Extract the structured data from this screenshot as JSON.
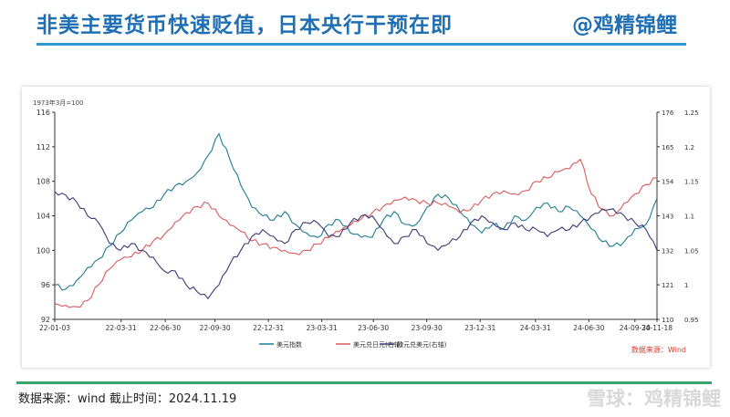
{
  "header": {
    "title": "非美主要货币快速贬值，日本央行干预在即",
    "author": "@鸡精锦鲤"
  },
  "footer": {
    "source_text": "数据来源：wind  截止时间：2024.11.19",
    "watermark": "雪球：鸡精锦鲤"
  },
  "colors": {
    "title": "#1f6fb2",
    "title_rule": "#2d9bd1",
    "footer_rule": "#3aa56b",
    "usd_index": "#1f7a93",
    "usdjpy": "#d95a5a",
    "eurusd": "#3a3a78",
    "source_note": "#d9382f"
  },
  "chart_data": {
    "type": "line",
    "ylabel": "1973年3月=100",
    "source_note": "数据来源：Wind",
    "x_tick_labels": [
      "22-01-03",
      "22-03-31",
      "22-06-30",
      "22-09-30",
      "22-12-31",
      "23-03-31",
      "23-06-30",
      "23-09-30",
      "23-12-31",
      "24-03-31",
      "24-06-30",
      "24-09-30",
      "24-11-18"
    ],
    "left_axis": {
      "ylim": [
        92,
        116
      ],
      "ticks": [
        92,
        96,
        100,
        104,
        108,
        112,
        116
      ]
    },
    "right_axis_outer": {
      "ylim": [
        110,
        176
      ],
      "ticks": [
        110,
        121,
        132,
        143,
        154,
        165,
        176
      ]
    },
    "right_axis_inner": {
      "ylim": [
        0.95,
        1.25
      ],
      "ticks": [
        "0.95",
        "1",
        "1.05",
        "1.1",
        "1.15",
        "1.2",
        "1.25"
      ]
    },
    "legend_position": "bottom",
    "grid": false,
    "series": [
      {
        "name": "美元指数",
        "axis": "left",
        "color": "#1f7a93",
        "points": [
          [
            0,
            96
          ],
          [
            3,
            95.5
          ],
          [
            6,
            96.5
          ],
          [
            9,
            98
          ],
          [
            12,
            99
          ],
          [
            15,
            100.5
          ],
          [
            18,
            102
          ],
          [
            21,
            103.5
          ],
          [
            24,
            104.5
          ],
          [
            27,
            105
          ],
          [
            30,
            106.5
          ],
          [
            33,
            107.5
          ],
          [
            36,
            108
          ],
          [
            39,
            109
          ],
          [
            42,
            111
          ],
          [
            45,
            113.5
          ],
          [
            48,
            110.5
          ],
          [
            51,
            107.5
          ],
          [
            54,
            105
          ],
          [
            57,
            104
          ],
          [
            60,
            103.5
          ],
          [
            63,
            104.5
          ],
          [
            66,
            103
          ],
          [
            69,
            102
          ],
          [
            72,
            101.5
          ],
          [
            75,
            103
          ],
          [
            78,
            103.5
          ],
          [
            81,
            102
          ],
          [
            84,
            101.5
          ],
          [
            87,
            101.5
          ],
          [
            90,
            103.5
          ],
          [
            93,
            104.5
          ],
          [
            96,
            103
          ],
          [
            99,
            103
          ],
          [
            102,
            105
          ],
          [
            105,
            106.5
          ],
          [
            108,
            106
          ],
          [
            111,
            104.5
          ],
          [
            114,
            103
          ],
          [
            117,
            102
          ],
          [
            120,
            103
          ],
          [
            123,
            102.5
          ],
          [
            126,
            104
          ],
          [
            129,
            103.5
          ],
          [
            132,
            105
          ],
          [
            135,
            105.5
          ],
          [
            138,
            104.5
          ],
          [
            141,
            105
          ],
          [
            144,
            104
          ],
          [
            147,
            102.5
          ],
          [
            150,
            101
          ],
          [
            153,
            100.5
          ],
          [
            156,
            101
          ],
          [
            159,
            102.5
          ],
          [
            162,
            103
          ],
          [
            165,
            106
          ]
        ]
      },
      {
        "name": "美元兑日元(右轴)",
        "axis": "right_outer",
        "color": "#d95a5a",
        "points": [
          [
            0,
            115
          ],
          [
            3,
            114.5
          ],
          [
            6,
            114
          ],
          [
            9,
            116
          ],
          [
            12,
            121
          ],
          [
            15,
            126
          ],
          [
            18,
            129
          ],
          [
            21,
            130
          ],
          [
            24,
            132
          ],
          [
            27,
            135
          ],
          [
            30,
            137
          ],
          [
            33,
            141
          ],
          [
            36,
            144
          ],
          [
            39,
            146
          ],
          [
            42,
            147
          ],
          [
            45,
            143
          ],
          [
            48,
            140
          ],
          [
            51,
            138
          ],
          [
            54,
            135
          ],
          [
            57,
            134
          ],
          [
            60,
            133
          ],
          [
            63,
            132
          ],
          [
            66,
            131
          ],
          [
            69,
            132
          ],
          [
            72,
            134
          ],
          [
            75,
            136
          ],
          [
            78,
            138
          ],
          [
            81,
            140
          ],
          [
            84,
            142
          ],
          [
            87,
            144
          ],
          [
            90,
            146
          ],
          [
            93,
            148
          ],
          [
            96,
            149
          ],
          [
            99,
            148
          ],
          [
            102,
            147
          ],
          [
            105,
            147
          ],
          [
            108,
            146
          ],
          [
            111,
            144
          ],
          [
            114,
            145
          ],
          [
            117,
            148
          ],
          [
            120,
            150
          ],
          [
            123,
            151
          ],
          [
            126,
            150
          ],
          [
            129,
            151
          ],
          [
            132,
            154
          ],
          [
            135,
            155
          ],
          [
            138,
            157
          ],
          [
            141,
            158
          ],
          [
            144,
            161
          ],
          [
            147,
            150
          ],
          [
            150,
            145
          ],
          [
            153,
            143
          ],
          [
            156,
            147
          ],
          [
            159,
            150
          ],
          [
            162,
            153
          ],
          [
            165,
            155
          ]
        ]
      },
      {
        "name": "欧元兑美元(右轴)",
        "axis": "right_inner",
        "color": "#3a3a78",
        "points": [
          [
            0,
            1.135
          ],
          [
            3,
            1.13
          ],
          [
            6,
            1.12
          ],
          [
            9,
            1.1
          ],
          [
            12,
            1.09
          ],
          [
            15,
            1.06
          ],
          [
            18,
            1.05
          ],
          [
            21,
            1.06
          ],
          [
            24,
            1.05
          ],
          [
            27,
            1.04
          ],
          [
            30,
            1.02
          ],
          [
            33,
            1.02
          ],
          [
            36,
            1.0
          ],
          [
            39,
            0.99
          ],
          [
            42,
            0.98
          ],
          [
            45,
            1.0
          ],
          [
            48,
            1.03
          ],
          [
            51,
            1.05
          ],
          [
            54,
            1.07
          ],
          [
            57,
            1.08
          ],
          [
            60,
            1.07
          ],
          [
            63,
            1.06
          ],
          [
            66,
            1.08
          ],
          [
            69,
            1.09
          ],
          [
            72,
            1.09
          ],
          [
            75,
            1.07
          ],
          [
            78,
            1.07
          ],
          [
            81,
            1.09
          ],
          [
            84,
            1.1
          ],
          [
            87,
            1.1
          ],
          [
            90,
            1.08
          ],
          [
            93,
            1.06
          ],
          [
            96,
            1.07
          ],
          [
            99,
            1.08
          ],
          [
            102,
            1.06
          ],
          [
            105,
            1.05
          ],
          [
            108,
            1.06
          ],
          [
            111,
            1.07
          ],
          [
            114,
            1.09
          ],
          [
            117,
            1.1
          ],
          [
            120,
            1.09
          ],
          [
            123,
            1.08
          ],
          [
            126,
            1.09
          ],
          [
            129,
            1.08
          ],
          [
            132,
            1.08
          ],
          [
            135,
            1.07
          ],
          [
            138,
            1.08
          ],
          [
            141,
            1.08
          ],
          [
            144,
            1.09
          ],
          [
            147,
            1.1
          ],
          [
            150,
            1.11
          ],
          [
            153,
            1.11
          ],
          [
            156,
            1.1
          ],
          [
            159,
            1.09
          ],
          [
            162,
            1.08
          ],
          [
            165,
            1.05
          ]
        ]
      }
    ]
  }
}
